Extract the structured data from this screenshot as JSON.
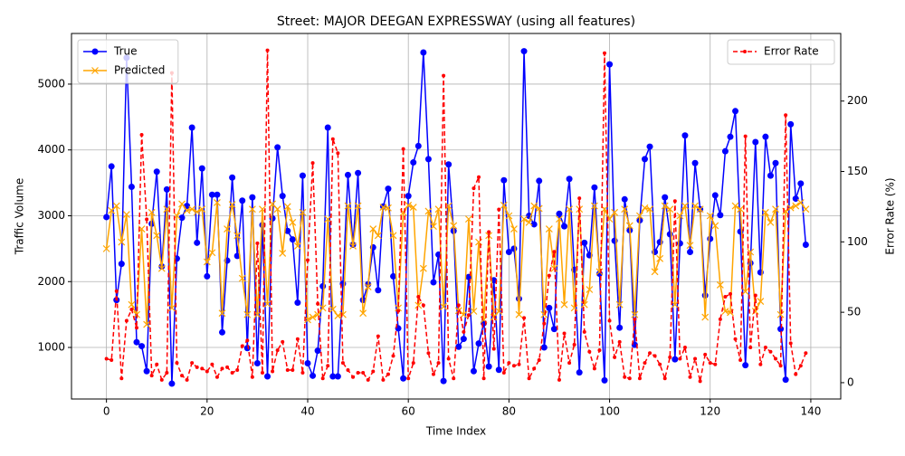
{
  "chart_data": {
    "type": "line",
    "title": "Street: MAJOR DEEGAN EXPRESSWAY (using all features)",
    "xlabel": "Time Index",
    "ylabel": "Traffic Volume",
    "y2label": "Error Rate (%)",
    "x": [
      0,
      1,
      2,
      3,
      4,
      5,
      6,
      7,
      8,
      9,
      10,
      11,
      12,
      13,
      14,
      15,
      16,
      17,
      18,
      19,
      20,
      21,
      22,
      23,
      24,
      25,
      26,
      27,
      28,
      29,
      30,
      31,
      32,
      33,
      34,
      35,
      36,
      37,
      38,
      39,
      40,
      41,
      42,
      43,
      44,
      45,
      46,
      47,
      48,
      49,
      50,
      51,
      52,
      53,
      54,
      55,
      56,
      57,
      58,
      59,
      60,
      61,
      62,
      63,
      64,
      65,
      66,
      67,
      68,
      69,
      70,
      71,
      72,
      73,
      74,
      75,
      76,
      77,
      78,
      79,
      80,
      81,
      82,
      83,
      84,
      85,
      86,
      87,
      88,
      89,
      90,
      91,
      92,
      93,
      94,
      95,
      96,
      97,
      98,
      99,
      100,
      101,
      102,
      103,
      104,
      105,
      106,
      107,
      108,
      109,
      110,
      111,
      112,
      113,
      114,
      115,
      116,
      117,
      118,
      119,
      120,
      121,
      122,
      123,
      124,
      125,
      126,
      127,
      128,
      129,
      130,
      131,
      132,
      133,
      134,
      135,
      136,
      137,
      138,
      139
    ],
    "series": [
      {
        "name": "True",
        "color": "#0000ff",
        "marker": "circle",
        "linestyle": "solid",
        "axis": "y",
        "values": [
          2980,
          3750,
          1720,
          2270,
          5400,
          3440,
          1080,
          1020,
          640,
          2880,
          3670,
          2230,
          3400,
          450,
          2350,
          2970,
          3150,
          4340,
          2590,
          3720,
          2080,
          3320,
          3320,
          1230,
          2320,
          3580,
          2390,
          3230,
          990,
          3280,
          760,
          2860,
          560,
          2960,
          4040,
          3300,
          2770,
          2640,
          1680,
          3610,
          760,
          570,
          950,
          1930,
          4340,
          560,
          560,
          1970,
          3620,
          2560,
          3650,
          1720,
          1960,
          2520,
          1870,
          3140,
          3410,
          2080,
          1290,
          530,
          3300,
          3810,
          4060,
          5480,
          3860,
          1990,
          2410,
          490,
          3780,
          2770,
          1010,
          1130,
          2070,
          640,
          1060,
          1370,
          710,
          2020,
          660,
          3540,
          2450,
          2500,
          1740,
          5500,
          3000,
          2870,
          3530,
          1000,
          1600,
          1280,
          3030,
          2840,
          3560,
          2180,
          620,
          2590,
          2400,
          3430,
          2120,
          500,
          5300,
          2620,
          1300,
          3250,
          2780,
          1040,
          2930,
          3860,
          4050,
          2450,
          2600,
          3280,
          2720,
          820,
          2580,
          4220,
          2450,
          3800,
          3100,
          1790,
          2650,
          3310,
          3010,
          3980,
          4200,
          4590,
          2760,
          730,
          2280,
          4120,
          2140,
          4200,
          3610,
          3800,
          1280,
          510,
          4390,
          3260,
          3490,
          2560
        ]
      },
      {
        "name": "Predicted",
        "color": "#ffa500",
        "marker": "x",
        "linestyle": "solid",
        "axis": "y",
        "values": [
          2500,
          3080,
          3150,
          2600,
          3020,
          1650,
          1500,
          2800,
          1350,
          3050,
          2700,
          2200,
          3100,
          1600,
          3000,
          3180,
          3080,
          3100,
          3060,
          3100,
          2300,
          2440,
          3200,
          1520,
          2800,
          3170,
          2700,
          2050,
          1500,
          3100,
          1500,
          3100,
          1660,
          3180,
          3100,
          2430,
          3140,
          2900,
          2540,
          3050,
          1420,
          1460,
          1500,
          1600,
          2950,
          1580,
          1480,
          1500,
          3150,
          2540,
          3150,
          1520,
          1920,
          2800,
          2700,
          3130,
          3120,
          2700,
          1600,
          3050,
          3160,
          3130,
          1640,
          2200,
          3070,
          2840,
          3100,
          1620,
          3150,
          2850,
          1560,
          1500,
          2950,
          1550,
          2600,
          1420,
          2700,
          1460,
          1550,
          3160,
          3000,
          2800,
          1500,
          2950,
          2900,
          3150,
          3110,
          1500,
          2800,
          2200,
          2950,
          1650,
          3100,
          1600,
          3100,
          1650,
          1880,
          3150,
          2150,
          3100,
          2950,
          3050,
          1650,
          3100,
          2850,
          1500,
          3000,
          3120,
          3100,
          2150,
          2350,
          3150,
          3100,
          1650,
          3000,
          3150,
          2550,
          3150,
          3100,
          1460,
          3000,
          2850,
          1950,
          1550,
          1530,
          3150,
          3100,
          1850,
          2450,
          1550,
          1700,
          3050,
          2900,
          3100,
          1500,
          3070,
          3120,
          3150,
          3200,
          3100
        ]
      },
      {
        "name": "Error Rate",
        "color": "#ff0000",
        "marker": "dot",
        "linestyle": "dashed",
        "axis": "y2",
        "values": [
          17,
          16,
          65,
          3,
          44,
          52,
          39,
          176,
          116,
          5,
          13,
          2,
          7,
          220,
          14,
          5,
          2,
          14,
          11,
          10,
          8,
          13,
          4,
          10,
          11,
          7,
          9,
          26,
          30,
          4,
          99,
          7,
          236,
          8,
          23,
          29,
          9,
          9,
          31,
          7,
          87,
          156,
          56,
          3,
          12,
          173,
          163,
          14,
          9,
          4,
          7,
          7,
          2,
          8,
          33,
          2,
          6,
          19,
          51,
          166,
          3,
          14,
          61,
          55,
          21,
          6,
          14,
          218,
          17,
          3,
          55,
          36,
          48,
          138,
          146,
          3,
          107,
          24,
          123,
          7,
          14,
          12,
          13,
          46,
          3,
          10,
          16,
          42,
          76,
          93,
          2,
          35,
          14,
          27,
          131,
          36,
          22,
          10,
          23,
          234,
          44,
          18,
          29,
          4,
          3,
          45,
          3,
          14,
          21,
          19,
          13,
          3,
          18,
          129,
          17,
          25,
          4,
          17,
          1,
          20,
          14,
          13,
          45,
          61,
          63,
          31,
          16,
          175,
          25,
          62,
          13,
          25,
          22,
          17,
          12,
          190,
          28,
          6,
          12,
          21
        ]
      }
    ],
    "xlim": [
      -6.95,
      145.95
    ],
    "ylim": [
      217,
      5769
    ],
    "y2lim": [
      -11.6,
      248
    ],
    "xticks": [
      0,
      20,
      40,
      60,
      80,
      100,
      120,
      140
    ],
    "yticks": [
      1000,
      2000,
      3000,
      4000,
      5000
    ],
    "y2ticks": [
      0,
      50,
      100,
      150,
      200
    ],
    "grid": true,
    "legend": {
      "y": "upper left",
      "y2": "upper right"
    }
  }
}
